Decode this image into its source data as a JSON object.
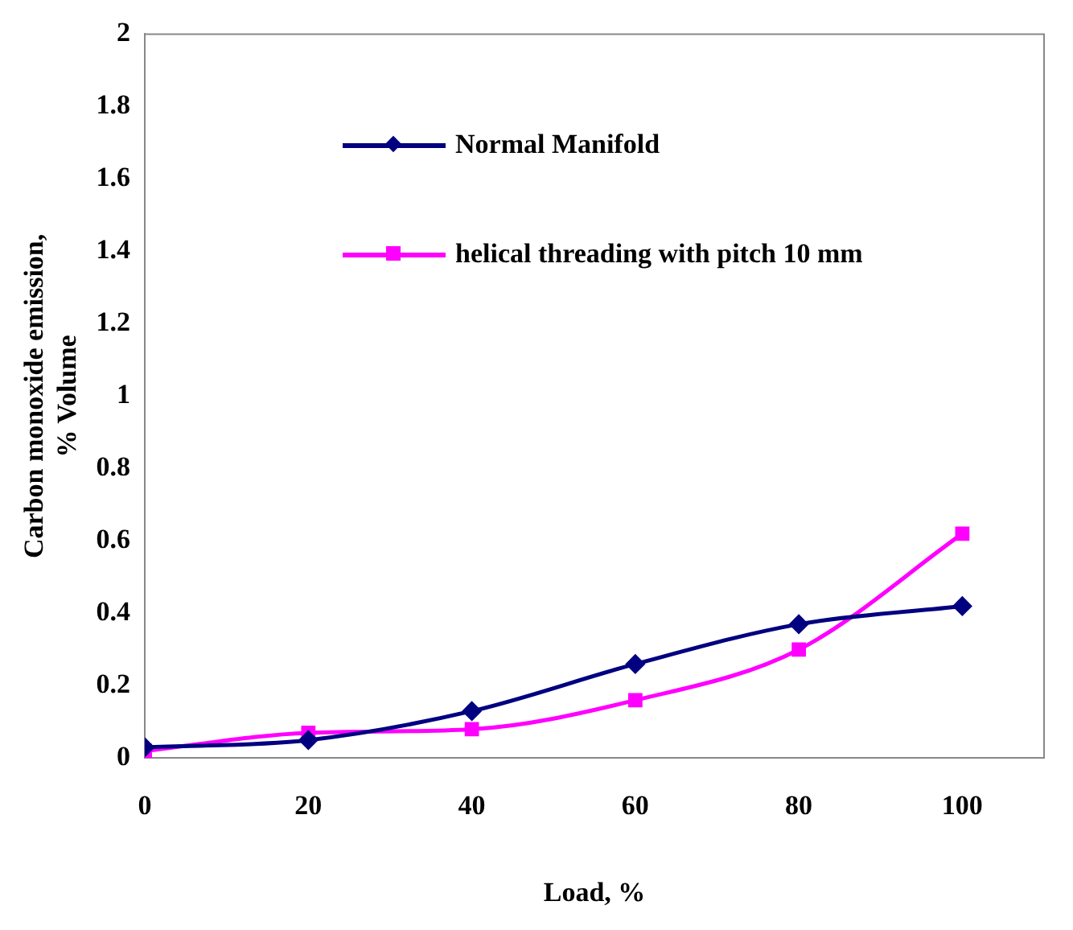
{
  "chart_data": {
    "type": "line",
    "xlabel": "Load, %",
    "ylabel": "Carbon monoxide emission,\n% Volume",
    "x": [
      0,
      20,
      40,
      60,
      80,
      100
    ],
    "xlim": [
      0,
      110
    ],
    "xticks": [
      0,
      20,
      40,
      60,
      80,
      100
    ],
    "ylim": [
      0,
      2
    ],
    "yticks": [
      0,
      0.2,
      0.4,
      0.6,
      0.8,
      1,
      1.2,
      1.4,
      1.6,
      1.8,
      2
    ],
    "grid": false,
    "legend": "top left",
    "series": [
      {
        "name": "Normal Manifold",
        "color": "#000080",
        "marker": "diamond",
        "values": [
          0.03,
          0.05,
          0.13,
          0.26,
          0.37,
          0.42
        ]
      },
      {
        "name": "helical threading with pitch 10 mm",
        "color": "#ff00ff",
        "marker": "square",
        "values": [
          0.02,
          0.07,
          0.08,
          0.16,
          0.3,
          0.62
        ]
      }
    ]
  }
}
